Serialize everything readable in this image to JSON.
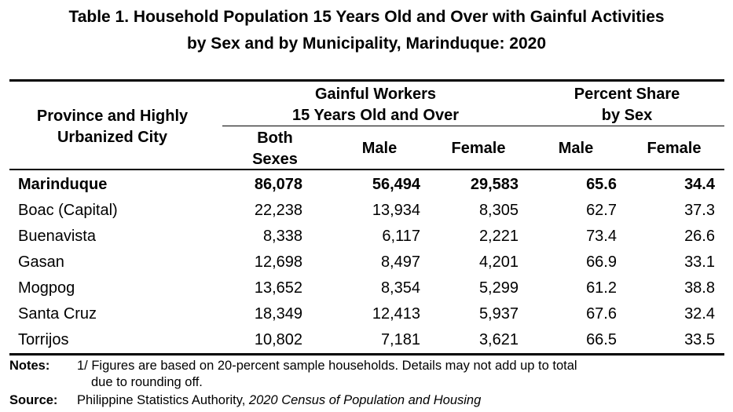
{
  "title": {
    "line1": "Table 1. Household Population 15 Years Old and Over with Gainful Activities",
    "line2": "by Sex and by Municipality, Marinduque: 2020"
  },
  "header": {
    "stub_line1": "Province and Highly",
    "stub_line2": "Urbanized City",
    "group1_line1": "Gainful Workers",
    "group1_line2": "15 Years Old and Over",
    "group2_line1": "Percent Share",
    "group2_line2": "by Sex",
    "col_both_line1": "Both",
    "col_both_line2": "Sexes",
    "col_male": "Male",
    "col_female": "Female",
    "col_pct_male": "Male",
    "col_pct_female": "Female"
  },
  "rows": [
    {
      "name": "Marinduque",
      "both": "86,078",
      "male": "56,494",
      "female": "29,583",
      "pct_male": "65.6",
      "pct_female": "34.4"
    },
    {
      "name": "Boac (Capital)",
      "both": "22,238",
      "male": "13,934",
      "female": "8,305",
      "pct_male": "62.7",
      "pct_female": "37.3"
    },
    {
      "name": "Buenavista",
      "both": "8,338",
      "male": "6,117",
      "female": "2,221",
      "pct_male": "73.4",
      "pct_female": "26.6"
    },
    {
      "name": "Gasan",
      "both": "12,698",
      "male": "8,497",
      "female": "4,201",
      "pct_male": "66.9",
      "pct_female": "33.1"
    },
    {
      "name": "Mogpog",
      "both": "13,652",
      "male": "8,354",
      "female": "5,299",
      "pct_male": "61.2",
      "pct_female": "38.8"
    },
    {
      "name": "Santa Cruz",
      "both": "18,349",
      "male": "12,413",
      "female": "5,937",
      "pct_male": "67.6",
      "pct_female": "32.4"
    },
    {
      "name": "Torrijos",
      "both": "10,802",
      "male": "7,181",
      "female": "3,621",
      "pct_male": "66.5",
      "pct_female": "33.5"
    }
  ],
  "notes": {
    "label": "Notes:",
    "text_line1": "1/ Figures are based on 20-percent sample households. Details may not add up to total",
    "text_line2": "due to rounding off."
  },
  "source": {
    "label": "Source:",
    "text": "Philippine Statistics Authority,",
    "publication": "2020 Census of Population and Housing"
  }
}
